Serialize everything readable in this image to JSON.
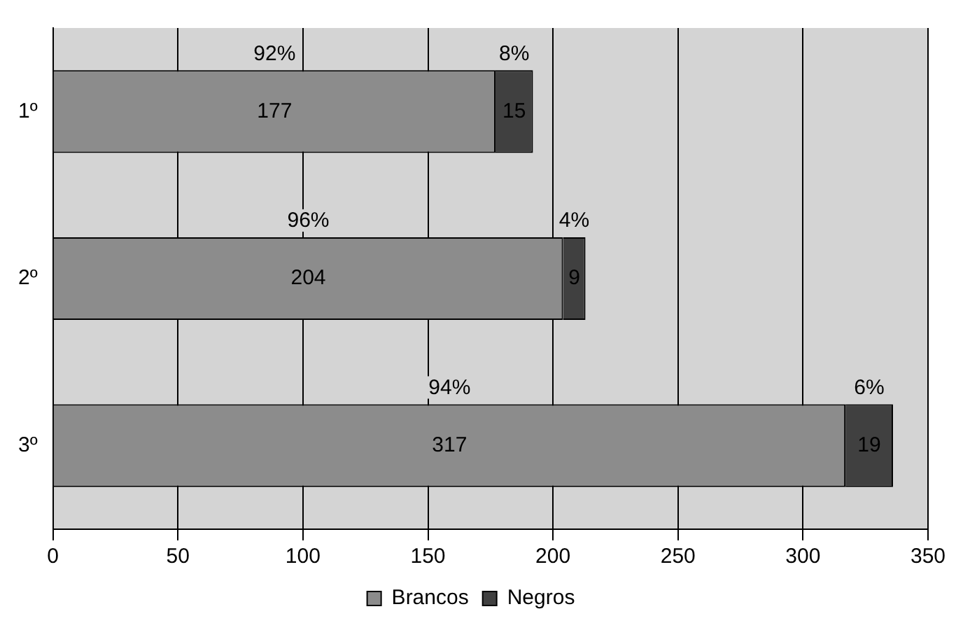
{
  "chart_data": {
    "type": "bar",
    "orientation": "horizontal",
    "stacked": true,
    "categories": [
      "1º",
      "2º",
      "3º"
    ],
    "series": [
      {
        "name": "Brancos",
        "color": "#8c8c8c",
        "values": [
          177,
          204,
          317
        ]
      },
      {
        "name": "Negros",
        "color": "#404040",
        "values": [
          15,
          9,
          19
        ]
      }
    ],
    "xlim": [
      0,
      350
    ],
    "xticks": [
      0,
      50,
      100,
      150,
      200,
      250,
      300,
      350
    ],
    "grid": "x",
    "legend": "bottom",
    "data_labels": true,
    "annotations": [
      "92%",
      "8%",
      "96%",
      "4%",
      "94%",
      "6%"
    ]
  }
}
